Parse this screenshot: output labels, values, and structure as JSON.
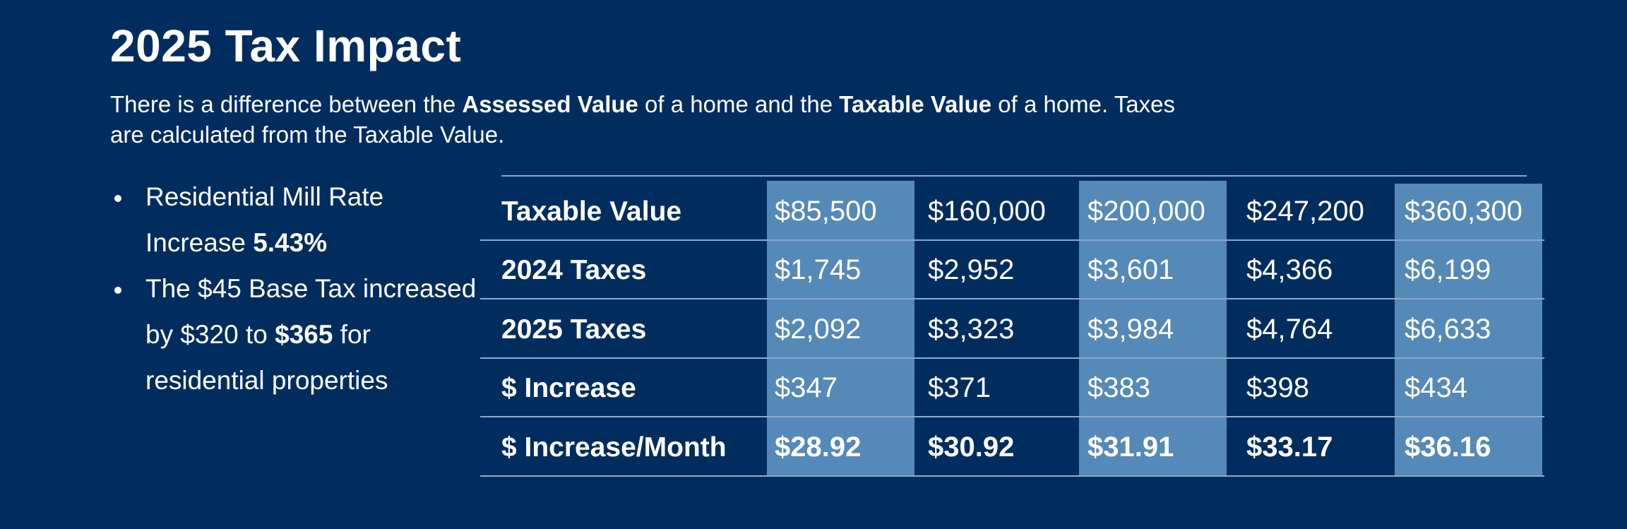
{
  "title": "2025 Tax Impact",
  "intro": {
    "part1": "There is a difference between the ",
    "bold1": "Assessed Value",
    "part2": " of a home and the ",
    "bold2": "Taxable Value",
    "part3": " of a home. Taxes are calculated from the Taxable Value."
  },
  "bullets": [
    {
      "text": "Residential Mill Rate Increase ",
      "bold": "5.43%",
      "after": ""
    },
    {
      "text": "The $45 Base Tax increased by $320 to ",
      "bold": "$365",
      "after": " for residential properties"
    }
  ],
  "table": {
    "rows": [
      {
        "label": "Taxable Value",
        "values": [
          "$85,500",
          "$160,000",
          "$200,000",
          "$247,200",
          "$360,300"
        ]
      },
      {
        "label": "2024 Taxes",
        "values": [
          "$1,745",
          "$2,952",
          "$3,601",
          "$4,366",
          "$6,199"
        ]
      },
      {
        "label": "2025 Taxes",
        "values": [
          "$2,092",
          "$3,323",
          "$3,984",
          "$4,764",
          "$6,633"
        ]
      },
      {
        "label": "$ Increase",
        "values": [
          "$347",
          "$371",
          "$383",
          "$398",
          "$434"
        ]
      },
      {
        "label": "$ Increase/Month",
        "values": [
          "$28.92",
          "$30.92",
          "$31.91",
          "$33.17",
          "$36.16"
        ]
      }
    ]
  },
  "colors": {
    "background": "#002d5e",
    "highlight_column": "#5589b7",
    "rule": "#8ea9c9",
    "text": "#ffffff"
  }
}
